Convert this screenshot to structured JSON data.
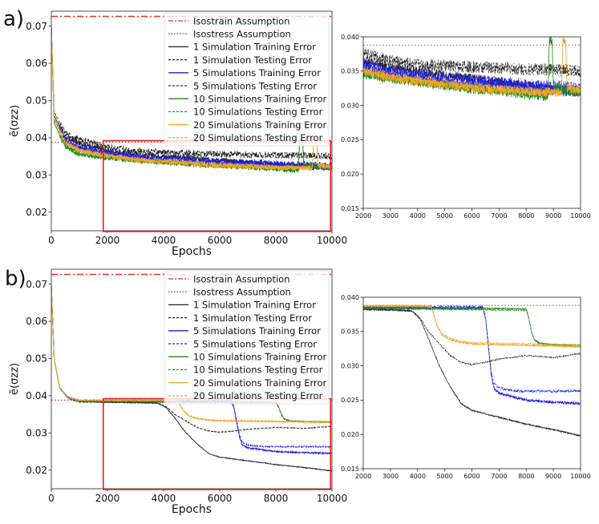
{
  "figure": {
    "panel_labels": [
      "a)",
      "b)"
    ],
    "colors": {
      "isostrain": "#e8302a",
      "isostress": "#e8302a",
      "sims_1": "#222222",
      "sims_5": "#1f1fe8",
      "sims_10": "#1e8a1e",
      "sims_20": "#f5a623",
      "zoom_box": "#e02020"
    }
  },
  "chart_data": [
    {
      "id": "a_main",
      "panel": "a)",
      "type": "line",
      "xlabel": "Epochs",
      "ylabel": "ē(σzz)",
      "xlim": [
        0,
        10000
      ],
      "ylim": [
        0.015,
        0.074
      ],
      "xticks": [
        0,
        2000,
        4000,
        6000,
        8000,
        10000
      ],
      "yticks": [
        0.02,
        0.03,
        0.04,
        0.05,
        0.06,
        0.07
      ],
      "zoom_box": {
        "x": [
          1850,
          9950
        ],
        "y": [
          0.0148,
          0.0392
        ]
      },
      "legend": [
        "Isostrain Assumption",
        "Isostress Assumption",
        "1 Simulation Training Error",
        "1 Simulation Testing Error",
        "5 Simulations Training Error",
        "5 Simulations Testing Error",
        "10 Simulations Training Error",
        "10 Simulations Testing Error",
        "20 Simulations Training Error",
        "20 Simulations Testing Error"
      ],
      "references": [
        {
          "name": "Isostrain Assumption",
          "value": 0.0726,
          "style": "dashdot"
        },
        {
          "name": "Isostress Assumption",
          "value": 0.0388,
          "style": "dotted"
        }
      ],
      "series": [
        {
          "name": "1 Simulation Training Error",
          "x": [
            0,
            100,
            500,
            1000,
            2000,
            3000,
            4000,
            5000,
            6000,
            7000,
            8000,
            9000,
            10000
          ],
          "values": [
            0.07,
            0.046,
            0.04,
            0.0385,
            0.0365,
            0.0355,
            0.035,
            0.0345,
            0.034,
            0.0335,
            0.033,
            0.0325,
            0.032
          ],
          "noise": 0.0006,
          "dash": "solid"
        },
        {
          "name": "1 Simulation Testing Error",
          "x": [
            0,
            100,
            500,
            1000,
            2000,
            3000,
            4000,
            5000,
            6000,
            7000,
            8000,
            9000,
            10000
          ],
          "values": [
            0.07,
            0.047,
            0.041,
            0.0395,
            0.0375,
            0.0365,
            0.036,
            0.0358,
            0.0356,
            0.0355,
            0.0353,
            0.0352,
            0.035
          ],
          "noise": 0.0009,
          "dash": "dashed"
        },
        {
          "name": "5 Simulations Training Error",
          "x": [
            0,
            100,
            500,
            1000,
            2000,
            3000,
            4000,
            5000,
            6000,
            7000,
            8000,
            9000,
            10000
          ],
          "values": [
            0.07,
            0.045,
            0.039,
            0.037,
            0.0355,
            0.0345,
            0.034,
            0.0335,
            0.0332,
            0.033,
            0.0325,
            0.0322,
            0.032
          ],
          "noise": 0.0008,
          "dash": "solid"
        },
        {
          "name": "5 Simulations Testing Error",
          "x": [
            0,
            100,
            500,
            1000,
            2000,
            3000,
            4000,
            5000,
            6000,
            7000,
            8000,
            9000,
            10000
          ],
          "values": [
            0.07,
            0.045,
            0.0395,
            0.0375,
            0.036,
            0.035,
            0.0345,
            0.034,
            0.0337,
            0.0335,
            0.033,
            0.0328,
            0.0325
          ],
          "noise": 0.0009,
          "dash": "dashed"
        },
        {
          "name": "10 Simulations Training Error",
          "x": [
            0,
            100,
            500,
            1000,
            2000,
            3000,
            4000,
            5000,
            6000,
            7000,
            8000,
            8800,
            8850,
            8950,
            9000,
            10000
          ],
          "values": [
            0.07,
            0.044,
            0.0375,
            0.0355,
            0.0345,
            0.0338,
            0.0333,
            0.0328,
            0.0323,
            0.032,
            0.0315,
            0.0312,
            0.0395,
            0.0395,
            0.0325,
            0.0315
          ],
          "noise": 0.0006,
          "dash": "solid"
        },
        {
          "name": "10 Simulations Testing Error",
          "x": [
            0,
            100,
            500,
            1000,
            2000,
            3000,
            4000,
            5000,
            6000,
            7000,
            8000,
            8800,
            8850,
            8950,
            9000,
            10000
          ],
          "values": [
            0.07,
            0.044,
            0.0378,
            0.0358,
            0.0348,
            0.034,
            0.0336,
            0.0331,
            0.0327,
            0.0324,
            0.032,
            0.0318,
            0.0395,
            0.0395,
            0.033,
            0.032
          ],
          "noise": 0.0006,
          "dash": "dashed"
        },
        {
          "name": "20 Simulations Training Error",
          "x": [
            0,
            100,
            500,
            1000,
            2000,
            3000,
            4000,
            5000,
            6000,
            7000,
            8000,
            9300,
            9350,
            9450,
            9500,
            10000
          ],
          "values": [
            0.07,
            0.045,
            0.0385,
            0.0365,
            0.035,
            0.034,
            0.0335,
            0.033,
            0.0325,
            0.0322,
            0.032,
            0.0318,
            0.0395,
            0.0395,
            0.0325,
            0.032
          ],
          "noise": 0.0006,
          "dash": "solid"
        },
        {
          "name": "20 Simulations Testing Error",
          "x": [
            0,
            100,
            500,
            1000,
            2000,
            3000,
            4000,
            5000,
            6000,
            7000,
            8000,
            9300,
            9350,
            9450,
            9500,
            10000
          ],
          "values": [
            0.07,
            0.045,
            0.0388,
            0.0368,
            0.0353,
            0.0343,
            0.0338,
            0.0333,
            0.0328,
            0.0325,
            0.0322,
            0.032,
            0.0395,
            0.0395,
            0.0328,
            0.0323
          ],
          "noise": 0.0006,
          "dash": "dashed"
        }
      ]
    },
    {
      "id": "a_zoom",
      "panel": "a)",
      "type": "line",
      "xlabel": "",
      "ylabel": "",
      "xlim": [
        2000,
        10000
      ],
      "ylim": [
        0.015,
        0.04
      ],
      "xticks": [
        2000,
        3000,
        4000,
        5000,
        6000,
        7000,
        8000,
        9000,
        10000
      ],
      "yticks": [
        0.015,
        0.02,
        0.025,
        0.03,
        0.035,
        0.04
      ],
      "tick_labels_y": [
        "0.015",
        "0.020",
        "0.025",
        "0.030",
        "0.035",
        "0.040"
      ],
      "references": [
        {
          "name": "Isostress Assumption",
          "value": 0.0388,
          "style": "dotted"
        }
      ],
      "series_from": "a_main"
    },
    {
      "id": "b_main",
      "panel": "b)",
      "type": "line",
      "xlabel": "Epochs",
      "ylabel": "ē(σzz)",
      "xlim": [
        0,
        10000
      ],
      "ylim": [
        0.015,
        0.074
      ],
      "xticks": [
        0,
        2000,
        4000,
        6000,
        8000,
        10000
      ],
      "yticks": [
        0.02,
        0.03,
        0.04,
        0.05,
        0.06,
        0.07
      ],
      "zoom_box": {
        "x": [
          1850,
          9950
        ],
        "y": [
          0.0148,
          0.0392
        ]
      },
      "legend": [
        "Isostrain Assumption",
        "Isostress Assumption",
        "1 Simulation Training Error",
        "1 Simulation Testing Error",
        "5 Simulations Training Error",
        "5 Simulations Testing Error",
        "10 Simulations Training Error",
        "10 Simulations Testing Error",
        "20 Simulations Training Error",
        "20 Simulations Testing Error"
      ],
      "references": [
        {
          "name": "Isostrain Assumption",
          "value": 0.0726,
          "style": "dashdot"
        },
        {
          "name": "Isostress Assumption",
          "value": 0.0388,
          "style": "dotted"
        }
      ],
      "series": [
        {
          "name": "1 Simulation Training Error",
          "x": [
            0,
            100,
            300,
            600,
            1000,
            2000,
            3000,
            3800,
            4100,
            4400,
            4800,
            5200,
            5600,
            6000,
            7000,
            8000,
            9000,
            10000
          ],
          "values": [
            0.07,
            0.05,
            0.042,
            0.0395,
            0.0385,
            0.0383,
            0.0382,
            0.038,
            0.0368,
            0.034,
            0.03,
            0.027,
            0.0245,
            0.0235,
            0.0225,
            0.0215,
            0.0207,
            0.0198
          ],
          "noise": 0.0001,
          "dash": "solid"
        },
        {
          "name": "1 Simulation Testing Error",
          "x": [
            0,
            100,
            300,
            600,
            1000,
            2000,
            3000,
            3800,
            4100,
            4400,
            4800,
            5200,
            5600,
            6000,
            6500,
            7000,
            8000,
            9000,
            10000
          ],
          "values": [
            0.07,
            0.05,
            0.042,
            0.0393,
            0.0383,
            0.0382,
            0.0381,
            0.038,
            0.037,
            0.035,
            0.0332,
            0.0315,
            0.0305,
            0.0302,
            0.0305,
            0.031,
            0.0315,
            0.0312,
            0.0318
          ],
          "noise": 0.0001,
          "dash": "dashed"
        },
        {
          "name": "5 Simulations Training Error",
          "x": [
            0,
            100,
            300,
            600,
            1000,
            2000,
            4000,
            6400,
            6500,
            6600,
            6700,
            6800,
            7000,
            7500,
            8000,
            9000,
            10000
          ],
          "values": [
            0.07,
            0.05,
            0.042,
            0.0395,
            0.0386,
            0.0385,
            0.0384,
            0.0384,
            0.037,
            0.033,
            0.029,
            0.0268,
            0.026,
            0.0255,
            0.025,
            0.0247,
            0.0245
          ],
          "noise": 0.0002,
          "dash": "solid"
        },
        {
          "name": "5 Simulations Testing Error",
          "x": [
            0,
            100,
            300,
            600,
            1000,
            2000,
            4000,
            6400,
            6500,
            6600,
            6700,
            6800,
            7000,
            7500,
            8000,
            9000,
            10000
          ],
          "values": [
            0.07,
            0.05,
            0.042,
            0.0396,
            0.0387,
            0.0386,
            0.0386,
            0.0386,
            0.0372,
            0.0335,
            0.0295,
            0.0275,
            0.0268,
            0.0264,
            0.0263,
            0.0263,
            0.0263
          ],
          "noise": 0.0002,
          "dash": "dashed"
        },
        {
          "name": "10 Simulations Training Error",
          "x": [
            0,
            100,
            300,
            600,
            1000,
            2000,
            4000,
            6000,
            8000,
            8100,
            8200,
            8300,
            8500,
            9000,
            10000
          ],
          "values": [
            0.07,
            0.05,
            0.042,
            0.0395,
            0.0386,
            0.0385,
            0.0385,
            0.0384,
            0.0383,
            0.037,
            0.035,
            0.0338,
            0.0333,
            0.0331,
            0.033
          ],
          "noise": 0.0001,
          "dash": "solid"
        },
        {
          "name": "10 Simulations Testing Error",
          "x": [
            0,
            100,
            300,
            600,
            1000,
            2000,
            4000,
            6000,
            8000,
            8100,
            8200,
            8300,
            8500,
            9000,
            10000
          ],
          "values": [
            0.07,
            0.05,
            0.042,
            0.0394,
            0.0385,
            0.0384,
            0.0383,
            0.0382,
            0.0381,
            0.0368,
            0.0348,
            0.0337,
            0.0332,
            0.033,
            0.0328
          ],
          "noise": 0.0001,
          "dash": "dashed"
        },
        {
          "name": "20 Simulations Training Error",
          "x": [
            0,
            100,
            300,
            600,
            1000,
            2000,
            4000,
            4500,
            4700,
            4900,
            5200,
            5600,
            6000,
            7000,
            8000,
            9000,
            10000
          ],
          "values": [
            0.07,
            0.05,
            0.042,
            0.0395,
            0.0387,
            0.0387,
            0.0387,
            0.0386,
            0.036,
            0.0345,
            0.0338,
            0.0334,
            0.0332,
            0.0331,
            0.033,
            0.0329,
            0.0328
          ],
          "noise": 0.0001,
          "dash": "solid"
        },
        {
          "name": "20 Simulations Testing Error",
          "x": [
            0,
            100,
            300,
            600,
            1000,
            2000,
            4000,
            4500,
            4700,
            4900,
            5200,
            5600,
            6000,
            7000,
            8000,
            9000,
            10000
          ],
          "values": [
            0.07,
            0.05,
            0.042,
            0.0396,
            0.0388,
            0.0388,
            0.0388,
            0.0387,
            0.0362,
            0.0347,
            0.034,
            0.0336,
            0.0334,
            0.0333,
            0.0332,
            0.0331,
            0.033
          ],
          "noise": 0.0001,
          "dash": "dashed"
        }
      ]
    },
    {
      "id": "b_zoom",
      "panel": "b)",
      "type": "line",
      "xlabel": "",
      "ylabel": "",
      "xlim": [
        2000,
        10000
      ],
      "ylim": [
        0.015,
        0.04
      ],
      "xticks": [
        2000,
        3000,
        4000,
        5000,
        6000,
        7000,
        8000,
        9000,
        10000
      ],
      "yticks": [
        0.015,
        0.02,
        0.025,
        0.03,
        0.035,
        0.04
      ],
      "tick_labels_y": [
        "0.015",
        "0.020",
        "0.025",
        "0.030",
        "0.035",
        "0.040"
      ],
      "references": [
        {
          "name": "Isostress Assumption",
          "value": 0.0388,
          "style": "dotted"
        }
      ],
      "series_from": "b_main"
    }
  ]
}
